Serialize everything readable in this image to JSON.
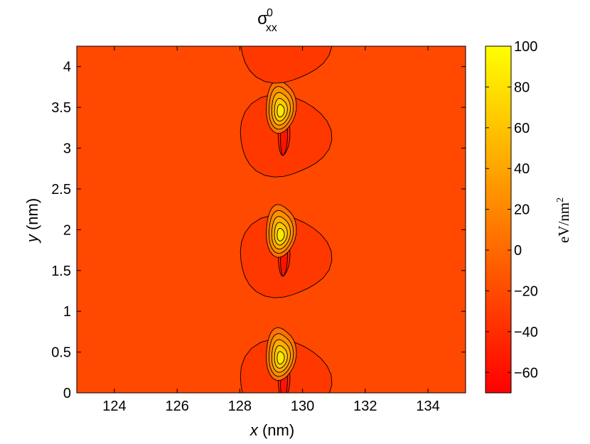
{
  "chart_data": {
    "type": "contour",
    "title": {
      "base": "σ",
      "superscript": "0",
      "subscript": "xx"
    },
    "xlabel": {
      "var": "x",
      "unit": " (nm)"
    },
    "ylabel": {
      "var": "y",
      "unit": " (nm)"
    },
    "xlim": [
      122.8,
      135.2
    ],
    "ylim": [
      0,
      4.25
    ],
    "xticks": [
      124,
      126,
      128,
      130,
      132,
      134
    ],
    "xtick_labels": [
      "124",
      "126",
      "128",
      "130",
      "132",
      "134"
    ],
    "yticks": [
      0,
      0.5,
      1,
      1.5,
      2,
      2.5,
      3,
      3.5,
      4
    ],
    "ytick_labels": [
      "0",
      "0.5",
      "1",
      "1.5",
      "2",
      "2.5",
      "3",
      "3.5",
      "4"
    ],
    "colorbar": {
      "unit_text": "eV/nm",
      "unit_superscript": "2",
      "range": [
        -70,
        100
      ],
      "ticks": [
        -60,
        -40,
        -20,
        0,
        20,
        40,
        60,
        80,
        100
      ],
      "tick_labels": [
        "−60",
        "−40",
        "−20",
        "0",
        "20",
        "40",
        "60",
        "80",
        "100"
      ],
      "colormap": "autumn"
    },
    "background_value": -22,
    "features": [
      {
        "kind": "compressive_lobe",
        "x": 129.4,
        "y": 0.1,
        "level_values": [
          -33,
          -45,
          -58
        ]
      },
      {
        "kind": "tensile_peak",
        "x": 129.3,
        "y": 0.52,
        "level_values": [
          5,
          25,
          45,
          65,
          85
        ]
      },
      {
        "kind": "compressive_lobe",
        "x": 129.4,
        "y": 1.62,
        "level_values": [
          -33,
          -45,
          -58
        ]
      },
      {
        "kind": "tensile_peak",
        "x": 129.3,
        "y": 2.03,
        "level_values": [
          5,
          25,
          45,
          65,
          85
        ]
      },
      {
        "kind": "compressive_lobe",
        "x": 129.4,
        "y": 3.1,
        "level_values": [
          -33,
          -45,
          -58
        ]
      },
      {
        "kind": "tensile_peak",
        "x": 129.3,
        "y": 3.55,
        "level_values": [
          5,
          25,
          45,
          65,
          85
        ]
      },
      {
        "kind": "compressive_lobe",
        "x": 129.4,
        "y": 4.25,
        "level_values": [
          -33
        ]
      }
    ]
  }
}
